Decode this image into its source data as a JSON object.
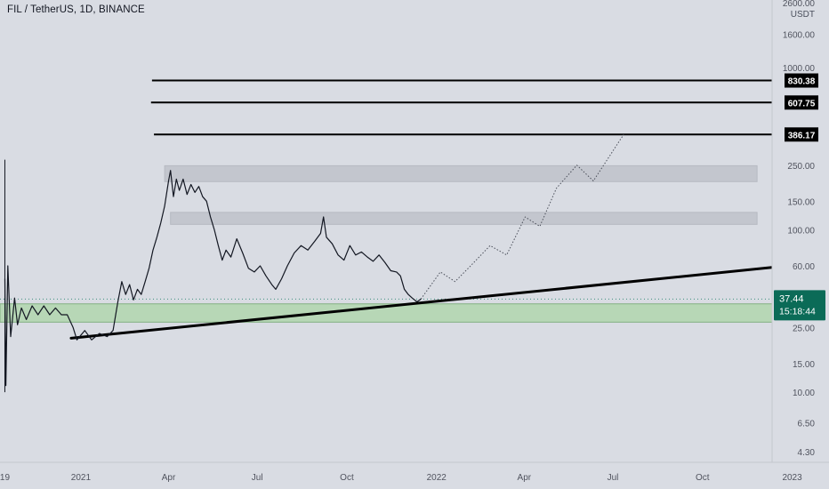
{
  "header": {
    "title": "FIL / TetherUS, 1D, BINANCE"
  },
  "price_axis": {
    "unit_label": "USDT",
    "top_label": "2600.00",
    "current_price": "37.44",
    "countdown": "15:18:44"
  },
  "colors": {
    "background": "#d9dce3",
    "price_line": "#131722",
    "resistance_zone": "#c1c4cc",
    "support_zone": "#b6d7b4",
    "support_zone_border": "#7fae7d",
    "current_price_badge": "#0b6b57",
    "level_badge": "#000000"
  },
  "chart_data": {
    "type": "line",
    "scale": "log",
    "ylim": [
      3.7,
      2600
    ],
    "y_ticks": [
      1600,
      1000,
      250,
      150,
      100,
      60,
      25,
      15,
      10,
      6.5,
      4.3
    ],
    "y_tick_labels": [
      "1600.00",
      "1000.00",
      "250.00",
      "150.00",
      "100.00",
      "60.00",
      "25.00",
      "15.00",
      "10.00",
      "6.50",
      "4.30"
    ],
    "x_range": [
      "2020-10-10",
      "2023-02-06"
    ],
    "x_ticks": [
      {
        "date": "2020-10-15",
        "label": "19"
      },
      {
        "date": "2021-01-01",
        "label": "2021"
      },
      {
        "date": "2021-04-01",
        "label": "Apr"
      },
      {
        "date": "2021-07-01",
        "label": "Jul"
      },
      {
        "date": "2021-10-01",
        "label": "Oct"
      },
      {
        "date": "2022-01-01",
        "label": "2022"
      },
      {
        "date": "2022-04-01",
        "label": "Apr"
      },
      {
        "date": "2022-07-01",
        "label": "Jul"
      },
      {
        "date": "2022-10-01",
        "label": "Oct"
      },
      {
        "date": "2023-01-01",
        "label": "2023"
      }
    ],
    "series": [
      {
        "values": [
          [
            "2020-10-15",
            50
          ],
          [
            "2020-10-16",
            11
          ],
          [
            "2020-10-18",
            60
          ],
          [
            "2020-10-21",
            22
          ],
          [
            "2020-10-25",
            38
          ],
          [
            "2020-10-28",
            26
          ],
          [
            "2020-11-01",
            33
          ],
          [
            "2020-11-06",
            28
          ],
          [
            "2020-11-12",
            34
          ],
          [
            "2020-11-18",
            30
          ],
          [
            "2020-11-24",
            34
          ],
          [
            "2020-11-30",
            30
          ],
          [
            "2020-12-06",
            33
          ],
          [
            "2020-12-12",
            30
          ],
          [
            "2020-12-18",
            30
          ],
          [
            "2020-12-24",
            25
          ],
          [
            "2020-12-28",
            21
          ],
          [
            "2021-01-05",
            24
          ],
          [
            "2021-01-12",
            21
          ],
          [
            "2021-01-20",
            23
          ],
          [
            "2021-01-28",
            22
          ],
          [
            "2021-02-03",
            24
          ],
          [
            "2021-02-08",
            36
          ],
          [
            "2021-02-12",
            48
          ],
          [
            "2021-02-16",
            40
          ],
          [
            "2021-02-20",
            46
          ],
          [
            "2021-02-24",
            37
          ],
          [
            "2021-02-28",
            43
          ],
          [
            "2021-03-04",
            40
          ],
          [
            "2021-03-08",
            48
          ],
          [
            "2021-03-12",
            58
          ],
          [
            "2021-03-16",
            75
          ],
          [
            "2021-03-20",
            90
          ],
          [
            "2021-03-24",
            110
          ],
          [
            "2021-03-28",
            140
          ],
          [
            "2021-04-01",
            200
          ],
          [
            "2021-04-03",
            232
          ],
          [
            "2021-04-06",
            160
          ],
          [
            "2021-04-09",
            205
          ],
          [
            "2021-04-12",
            175
          ],
          [
            "2021-04-16",
            205
          ],
          [
            "2021-04-20",
            165
          ],
          [
            "2021-04-24",
            190
          ],
          [
            "2021-04-28",
            170
          ],
          [
            "2021-05-02",
            185
          ],
          [
            "2021-05-06",
            160
          ],
          [
            "2021-05-10",
            150
          ],
          [
            "2021-05-14",
            120
          ],
          [
            "2021-05-18",
            100
          ],
          [
            "2021-05-22",
            80
          ],
          [
            "2021-05-26",
            65
          ],
          [
            "2021-05-30",
            75
          ],
          [
            "2021-06-04",
            68
          ],
          [
            "2021-06-10",
            88
          ],
          [
            "2021-06-16",
            72
          ],
          [
            "2021-06-22",
            58
          ],
          [
            "2021-06-28",
            55
          ],
          [
            "2021-07-04",
            60
          ],
          [
            "2021-07-10",
            52
          ],
          [
            "2021-07-16",
            46
          ],
          [
            "2021-07-20",
            43
          ],
          [
            "2021-07-26",
            50
          ],
          [
            "2021-08-01",
            60
          ],
          [
            "2021-08-08",
            72
          ],
          [
            "2021-08-15",
            80
          ],
          [
            "2021-08-22",
            75
          ],
          [
            "2021-08-29",
            85
          ],
          [
            "2021-09-04",
            95
          ],
          [
            "2021-09-07",
            120
          ],
          [
            "2021-09-10",
            90
          ],
          [
            "2021-09-16",
            82
          ],
          [
            "2021-09-22",
            70
          ],
          [
            "2021-09-28",
            65
          ],
          [
            "2021-10-04",
            80
          ],
          [
            "2021-10-10",
            70
          ],
          [
            "2021-10-16",
            73
          ],
          [
            "2021-10-22",
            68
          ],
          [
            "2021-10-28",
            64
          ],
          [
            "2021-11-03",
            70
          ],
          [
            "2021-11-09",
            63
          ],
          [
            "2021-11-15",
            56
          ],
          [
            "2021-11-21",
            55
          ],
          [
            "2021-11-25",
            52
          ],
          [
            "2021-11-29",
            43
          ],
          [
            "2021-12-03",
            40
          ],
          [
            "2021-12-07",
            38
          ],
          [
            "2021-12-12",
            36
          ],
          [
            "2021-12-16",
            37.44
          ]
        ]
      },
      {
        "style": "dotted",
        "values": [
          [
            "2021-12-16",
            37.44
          ],
          [
            "2022-01-05",
            55
          ],
          [
            "2022-01-20",
            48
          ],
          [
            "2022-02-05",
            60
          ],
          [
            "2022-02-25",
            80
          ],
          [
            "2022-03-14",
            70
          ],
          [
            "2022-04-02",
            120
          ],
          [
            "2022-04-17",
            105
          ],
          [
            "2022-05-04",
            180
          ],
          [
            "2022-05-25",
            250
          ],
          [
            "2022-06-11",
            200
          ],
          [
            "2022-07-12",
            386.17
          ]
        ]
      }
    ],
    "levels": [
      {
        "value": 830.38,
        "label": "830.38",
        "from": "2021-03-15"
      },
      {
        "value": 607.75,
        "label": "607.75",
        "from": "2021-03-14"
      },
      {
        "value": 386.17,
        "label": "386.17",
        "from": "2021-03-17"
      }
    ],
    "zones": [
      {
        "kind": "resistance",
        "from": "2021-03-28",
        "to": "2022-11-26",
        "y_low": 198,
        "y_high": 248
      },
      {
        "kind": "resistance",
        "from": "2021-04-03",
        "to": "2022-11-26",
        "y_low": 108,
        "y_high": 128
      },
      {
        "kind": "support",
        "from": "2020-10-10",
        "to": "2023-01-27",
        "y_low": 27,
        "y_high": 35
      }
    ],
    "trendline": {
      "start": [
        "2020-12-22",
        21.5
      ],
      "end": [
        "2023-02-06",
        63.5
      ]
    }
  }
}
